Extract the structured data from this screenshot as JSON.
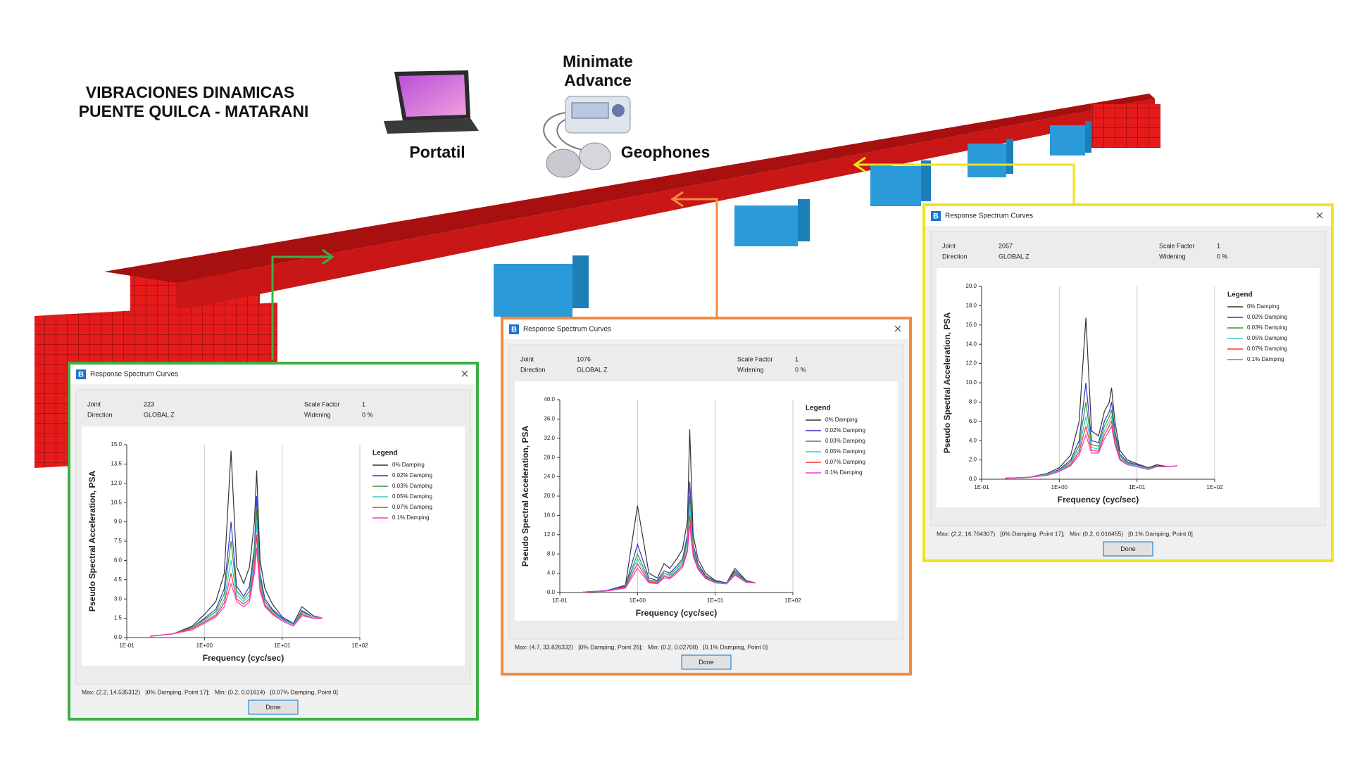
{
  "header": {
    "title_lines": [
      "VIBRACIONES DINAMICAS",
      "PUENTE QUILCA - MATARANI"
    ]
  },
  "labels": {
    "laptop": "Portatil",
    "device": [
      "Minimate",
      "Advance"
    ],
    "sensors": "Geophones"
  },
  "dialogs": [
    {
      "app_icon": "B",
      "title": "Response Spectrum Curves",
      "joint_label": "Joint",
      "joint": 223,
      "direction_label": "Direction",
      "direction": "GLOBAL Z",
      "scale_factor_label": "Scale Factor",
      "scale_factor": 1,
      "widening_label": "Widening",
      "widening": "0 %",
      "summary": "Max: (2.2, 14.535312)   [0% Damping, Point 17];   Min: (0.2, 0.01614)   [0.07% Damping, Point 0]",
      "button": "Done",
      "border_color": "#3cb043"
    },
    {
      "app_icon": "B",
      "title": "Response Spectrum Curves",
      "joint_label": "Joint",
      "joint": 1076,
      "direction_label": "Direction",
      "direction": "GLOBAL Z",
      "scale_factor_label": "Scale Factor",
      "scale_factor": 1,
      "widening_label": "Widening",
      "widening": "0 %",
      "summary": "Max: (4.7, 33.826332)   [0% Damping, Point 26];   Min: (0.2, 0.02708)   [0.1% Damping, Point 0]",
      "button": "Done",
      "border_color": "#f58a3c"
    },
    {
      "app_icon": "B",
      "title": "Response Spectrum Curves",
      "joint_label": "Joint",
      "joint": 2057,
      "direction_label": "Direction",
      "direction": "GLOBAL Z",
      "scale_factor_label": "Scale Factor",
      "scale_factor": 1,
      "widening_label": "Widening",
      "widening": "0 %",
      "summary": "Max: (2.2, 16.764307)   [0% Damping, Point 17];   Min: (0.2, 0.016455)   [0.1% Damping, Point 0]",
      "button": "Done",
      "border_color": "#f2e21a"
    }
  ],
  "chart_data": [
    {
      "type": "line",
      "x_label": "Frequency (cyc/sec)",
      "y_label": "Pseudo Spectral Acceleration, PSA",
      "legend_title": "Legend",
      "legend": "right",
      "log_x": true,
      "grid": "x",
      "x": [
        0.2,
        0.4,
        0.7,
        1.0,
        1.4,
        1.8,
        2.2,
        2.6,
        3.2,
        3.8,
        4.4,
        4.7,
        5.2,
        6,
        7.5,
        10,
        14,
        18,
        25,
        33
      ],
      "xlim": [
        0.1,
        100
      ],
      "xticks": [
        {
          "value": 0.1,
          "label": "1E-01"
        },
        {
          "value": 1,
          "label": "1E+00"
        },
        {
          "value": 10,
          "label": "1E+01"
        },
        {
          "value": 100,
          "label": "1E+02"
        }
      ],
      "ylim": [
        0,
        15
      ],
      "yticks": [
        {
          "value": 0,
          "label": "0.0"
        },
        {
          "value": 1.5,
          "label": "1.5"
        },
        {
          "value": 3,
          "label": "3.0"
        },
        {
          "value": 4.5,
          "label": "4.5"
        },
        {
          "value": 6,
          "label": "6.0"
        },
        {
          "value": 7.5,
          "label": "7.5"
        },
        {
          "value": 9,
          "label": "9.0"
        },
        {
          "value": 10.5,
          "label": "10.5"
        },
        {
          "value": 12,
          "label": "12.0"
        },
        {
          "value": 13.5,
          "label": "13.5"
        },
        {
          "value": 15,
          "label": "15.0"
        }
      ],
      "series": [
        {
          "name": "0% Damping",
          "color": "#333333",
          "values": [
            0.1,
            0.3,
            0.9,
            1.8,
            2.8,
            5,
            14.54,
            5.5,
            4.2,
            5.5,
            9,
            13,
            6,
            3.8,
            2.6,
            1.6,
            1.1,
            2.4,
            1.7,
            1.5
          ]
        },
        {
          "name": "0.02% Damping",
          "color": "#3333cc",
          "values": [
            0.1,
            0.3,
            0.8,
            1.5,
            2.2,
            3.8,
            9,
            4,
            3.2,
            4,
            7,
            11,
            5,
            3,
            2.2,
            1.5,
            1.0,
            2.1,
            1.6,
            1.5
          ]
        },
        {
          "name": "0.03% Damping",
          "color": "#339933",
          "values": [
            0.1,
            0.3,
            0.8,
            1.4,
            2,
            3.4,
            7.5,
            3.6,
            3,
            3.6,
            6.5,
            10,
            4.6,
            2.8,
            2.1,
            1.4,
            1.0,
            2.0,
            1.6,
            1.5
          ]
        },
        {
          "name": "0.05% Damping",
          "color": "#33cccc",
          "values": [
            0.1,
            0.3,
            0.7,
            1.3,
            1.8,
            3,
            6,
            3.3,
            2.8,
            3.3,
            6,
            9,
            4.2,
            2.6,
            2,
            1.4,
            1.0,
            1.9,
            1.6,
            1.5
          ]
        },
        {
          "name": "0.07% Damping",
          "color": "#ff3333",
          "values": [
            0.1,
            0.3,
            0.7,
            1.2,
            1.7,
            2.7,
            5,
            3,
            2.6,
            3,
            5.5,
            8,
            3.9,
            2.5,
            1.9,
            1.3,
            0.9,
            1.8,
            1.5,
            1.5
          ]
        },
        {
          "name": "0.1% Damping",
          "color": "#ff33cc",
          "values": [
            0.1,
            0.3,
            0.6,
            1.1,
            1.6,
            2.4,
            4.2,
            2.8,
            2.4,
            2.8,
            5,
            7,
            3.6,
            2.4,
            1.8,
            1.3,
            0.9,
            1.7,
            1.5,
            1.5
          ]
        }
      ]
    },
    {
      "type": "line",
      "x_label": "Frequency (cyc/sec)",
      "y_label": "Pseudo Spectral Acceleration, PSA",
      "legend_title": "Legend",
      "legend": "right",
      "log_x": true,
      "grid": "x",
      "x": [
        0.2,
        0.4,
        0.7,
        1.0,
        1.4,
        1.8,
        2.2,
        2.6,
        3.2,
        3.8,
        4.4,
        4.7,
        5.2,
        6,
        7.5,
        10,
        14,
        18,
        25,
        33
      ],
      "xlim": [
        0.1,
        100
      ],
      "xticks": [
        {
          "value": 0.1,
          "label": "1E-01"
        },
        {
          "value": 1,
          "label": "1E+00"
        },
        {
          "value": 10,
          "label": "1E+01"
        },
        {
          "value": 100,
          "label": "1E+02"
        }
      ],
      "ylim": [
        0,
        40
      ],
      "yticks": [
        {
          "value": 0,
          "label": "0.0"
        },
        {
          "value": 4,
          "label": "4.0"
        },
        {
          "value": 8,
          "label": "8.0"
        },
        {
          "value": 12,
          "label": "12.0"
        },
        {
          "value": 16,
          "label": "16.0"
        },
        {
          "value": 20,
          "label": "20.0"
        },
        {
          "value": 24,
          "label": "24.0"
        },
        {
          "value": 28,
          "label": "28.0"
        },
        {
          "value": 32,
          "label": "32.0"
        },
        {
          "value": 36,
          "label": "36.0"
        },
        {
          "value": 40,
          "label": "40.0"
        }
      ],
      "series": [
        {
          "name": "0% Damping",
          "color": "#333333",
          "values": [
            0.1,
            0.4,
            1.5,
            18,
            4,
            3,
            6,
            5,
            7,
            9,
            15,
            33.83,
            12,
            7,
            4,
            2.5,
            2,
            5,
            2.5,
            2
          ]
        },
        {
          "name": "0.02% Damping",
          "color": "#3333cc",
          "values": [
            0.1,
            0.4,
            1.3,
            10,
            3,
            2.5,
            4.5,
            4,
            5.5,
            7,
            12,
            23,
            10,
            6,
            3.5,
            2.3,
            2,
            4.5,
            2.3,
            2
          ]
        },
        {
          "name": "0.03% Damping",
          "color": "#339933",
          "values": [
            0.1,
            0.3,
            1.2,
            8,
            2.6,
            2.3,
            4,
            3.6,
            5,
            6.5,
            11,
            20,
            9,
            5.5,
            3.3,
            2.2,
            1.9,
            4.2,
            2.2,
            2
          ]
        },
        {
          "name": "0.05% Damping",
          "color": "#33cccc",
          "values": [
            0.1,
            0.3,
            1.1,
            7,
            2.4,
            2.1,
            3.6,
            3.3,
            4.6,
            6,
            10,
            18,
            8.5,
            5.2,
            3.1,
            2.1,
            1.9,
            4,
            2.2,
            2
          ]
        },
        {
          "name": "0.07% Damping",
          "color": "#ff3333",
          "values": [
            0.1,
            0.3,
            1,
            6,
            2.2,
            2,
            3.3,
            3.1,
            4.3,
            5.6,
            9,
            16,
            8,
            5,
            3,
            2,
            1.8,
            3.8,
            2.1,
            2
          ]
        },
        {
          "name": "0.1% Damping",
          "color": "#ff33cc",
          "values": [
            0.1,
            0.3,
            0.9,
            5,
            2,
            1.8,
            3,
            2.8,
            4,
            5.2,
            8.5,
            14,
            7.5,
            4.8,
            2.9,
            2,
            1.8,
            3.6,
            2.1,
            2
          ]
        }
      ]
    },
    {
      "type": "line",
      "x_label": "Frequency (cyc/sec)",
      "y_label": "Pseudo Spectral Acceleration, PSA",
      "legend_title": "Legend",
      "legend": "right",
      "log_x": true,
      "grid": "x",
      "x": [
        0.2,
        0.4,
        0.7,
        1.0,
        1.4,
        1.8,
        2.2,
        2.6,
        3.2,
        3.8,
        4.4,
        4.7,
        5.2,
        6,
        7.5,
        10,
        14,
        18,
        25,
        33
      ],
      "xlim": [
        0.1,
        100
      ],
      "xticks": [
        {
          "value": 0.1,
          "label": "1E-01"
        },
        {
          "value": 1,
          "label": "1E+00"
        },
        {
          "value": 10,
          "label": "1E+01"
        },
        {
          "value": 100,
          "label": "1E+02"
        }
      ],
      "ylim": [
        0,
        20
      ],
      "yticks": [
        {
          "value": 0,
          "label": "0.0"
        },
        {
          "value": 2,
          "label": "2.0"
        },
        {
          "value": 4,
          "label": "4.0"
        },
        {
          "value": 6,
          "label": "6.0"
        },
        {
          "value": 8,
          "label": "8.0"
        },
        {
          "value": 10,
          "label": "10.0"
        },
        {
          "value": 12,
          "label": "12.0"
        },
        {
          "value": 14,
          "label": "14.0"
        },
        {
          "value": 16,
          "label": "16.0"
        },
        {
          "value": 18,
          "label": "18.0"
        },
        {
          "value": 20,
          "label": "20.0"
        }
      ],
      "series": [
        {
          "name": "0% Damping",
          "color": "#333333",
          "values": [
            0.1,
            0.2,
            0.6,
            1.2,
            2.5,
            6,
            16.76,
            5,
            4.5,
            7,
            8,
            9.5,
            6,
            3,
            2,
            1.6,
            1.2,
            1.5,
            1.3,
            1.4
          ]
        },
        {
          "name": "0.02% Damping",
          "color": "#3333cc",
          "values": [
            0.1,
            0.2,
            0.5,
            1,
            2,
            4,
            10,
            4,
            3.8,
            6,
            7,
            8,
            5,
            2.6,
            1.8,
            1.5,
            1.1,
            1.4,
            1.3,
            1.4
          ]
        },
        {
          "name": "0.03% Damping",
          "color": "#339933",
          "values": [
            0.1,
            0.2,
            0.5,
            0.9,
            1.8,
            3.5,
            8,
            3.6,
            3.4,
            5.5,
            6.5,
            7.2,
            4.6,
            2.4,
            1.7,
            1.4,
            1.1,
            1.4,
            1.3,
            1.4
          ]
        },
        {
          "name": "0.05% Damping",
          "color": "#33cccc",
          "values": [
            0.1,
            0.2,
            0.5,
            0.9,
            1.6,
            3.1,
            6.5,
            3.3,
            3.1,
            5,
            6,
            6.5,
            4.2,
            2.2,
            1.6,
            1.4,
            1.1,
            1.3,
            1.3,
            1.4
          ]
        },
        {
          "name": "0.07% Damping",
          "color": "#ff3333",
          "values": [
            0.1,
            0.2,
            0.4,
            0.8,
            1.5,
            2.8,
            5.5,
            3,
            2.9,
            4.6,
            5.5,
            6,
            3.9,
            2.1,
            1.5,
            1.3,
            1.0,
            1.3,
            1.3,
            1.4
          ]
        },
        {
          "name": "0.1% Damping",
          "color": "#ff33cc",
          "values": [
            0.1,
            0.2,
            0.4,
            0.8,
            1.4,
            2.5,
            4.6,
            2.7,
            2.7,
            4.2,
            5,
            5.5,
            3.6,
            2,
            1.5,
            1.3,
            1.0,
            1.3,
            1.3,
            1.4
          ]
        }
      ]
    }
  ]
}
